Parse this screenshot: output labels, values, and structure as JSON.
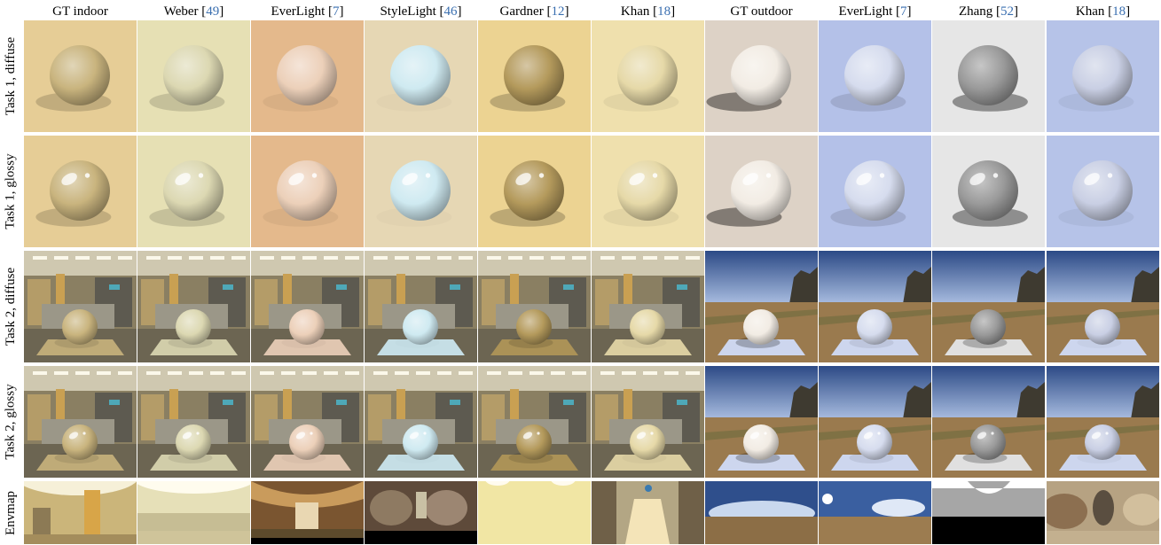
{
  "figure": {
    "columns": [
      {
        "label": "GT indoor",
        "ref": ""
      },
      {
        "label": "Weber",
        "ref": "49"
      },
      {
        "label": "EverLight",
        "ref": "7"
      },
      {
        "label": "StyleLight",
        "ref": "46"
      },
      {
        "label": "Gardner",
        "ref": "12"
      },
      {
        "label": "Khan",
        "ref": "18"
      },
      {
        "label": "GT outdoor",
        "ref": ""
      },
      {
        "label": "EverLight",
        "ref": "7"
      },
      {
        "label": "Zhang",
        "ref": "52"
      },
      {
        "label": "Khan",
        "ref": "18"
      }
    ],
    "rows": [
      {
        "label": "Task 1, diffuse",
        "kind": "studio",
        "finish": "diffuse"
      },
      {
        "label": "Task 1, glossy",
        "kind": "studio",
        "finish": "glossy"
      },
      {
        "label": "Task 2, diffuse",
        "kind": "scene",
        "finish": "diffuse"
      },
      {
        "label": "Task 2, glossy",
        "kind": "scene",
        "finish": "glossy"
      },
      {
        "label": "Envmap",
        "kind": "envmap",
        "finish": "none"
      }
    ],
    "palettes": {
      "backgrounds": [
        "#e6cd96",
        "#e6e0b4",
        "#e4b98c",
        "#e6d7b4",
        "#ecd392",
        "#efe0ad",
        "#ddd2c6",
        "#b4c1e8",
        "#e6e6e6",
        "#b6c3e8"
      ],
      "spheres": [
        "#c9b47e",
        "#dcd8b2",
        "#ecd0b9",
        "#cfeaf1",
        "#b49a5c",
        "#e6d9a8",
        "#f2ece4",
        "#d6dcee",
        "#9a9a9a",
        "#c9cfe4"
      ],
      "shadow_strength": [
        0.35,
        0.3,
        0.1,
        0.05,
        0.45,
        0.12,
        0.9,
        0.25,
        0.85,
        0.1
      ]
    },
    "envmap_styles": [
      "warehouse-bright",
      "warehouse-pale",
      "wooden-hall",
      "dark-room",
      "flat-cream",
      "tunnel-light",
      "field-sky",
      "field-sky-pale",
      "grey-horizon",
      "blurry-panorama"
    ]
  }
}
